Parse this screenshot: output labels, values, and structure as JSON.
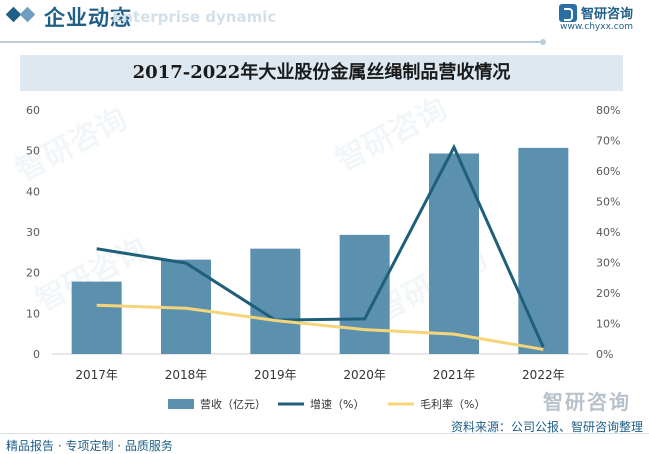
{
  "header": {
    "title": "企业动态",
    "subtitle": "Enterprise dynamic",
    "logo_text": "智研咨询",
    "logo_url": "www.chyxx.com"
  },
  "watermark_text": "智研咨询",
  "brand_mark": "智研咨询",
  "footer": {
    "left": "精品报告 · 专项定制 · 品质服务",
    "right": "资料来源：公司公报、智研咨询整理"
  },
  "colors": {
    "bar": "#5b90ae",
    "growth_line": "#1f5f7a",
    "margin_line": "#f5d57a"
  },
  "chart_data": {
    "type": "bar",
    "title": "2017-2022年大业股份金属丝绳制品营收情况",
    "categories": [
      "2017年",
      "2018年",
      "2019年",
      "2020年",
      "2021年",
      "2022年"
    ],
    "y_left": {
      "min": 0,
      "max": 60,
      "ticks": [
        "0",
        "10",
        "20",
        "30",
        "40",
        "50",
        "60"
      ]
    },
    "y_right": {
      "min": 0,
      "max": 80,
      "ticks": [
        "0%",
        "10%",
        "20%",
        "30%",
        "40%",
        "50%",
        "60%",
        "70%",
        "80%"
      ]
    },
    "series": [
      {
        "name": "营收（亿元）",
        "type": "bar",
        "axis": "left",
        "values": [
          17.8,
          23.2,
          25.9,
          29.3,
          49.3,
          50.7
        ]
      },
      {
        "name": "增速（%）",
        "type": "line",
        "axis": "right",
        "values": [
          34.5,
          29.8,
          11.1,
          11.5,
          67.8,
          2.2
        ]
      },
      {
        "name": "毛利率（%）",
        "type": "line",
        "axis": "right",
        "values": [
          16.0,
          15.0,
          11.0,
          8.0,
          6.5,
          1.5
        ]
      }
    ],
    "legend_position": "bottom"
  }
}
